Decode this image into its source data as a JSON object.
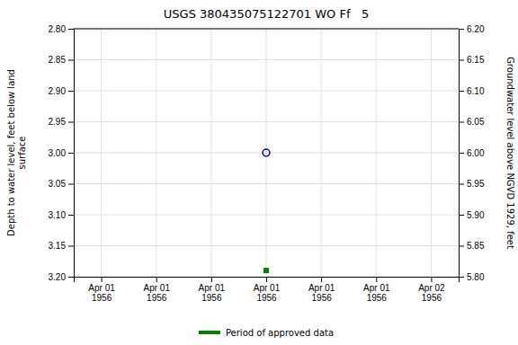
{
  "chart_data": {
    "type": "scatter",
    "title": "USGS 380435075122701 WO Ff   5",
    "y_label": "Depth to water level, feet below land\nsurface",
    "y2_label": "Groundwater level above NGVD 1929, feet",
    "categories": [
      "Apr 01\n1956",
      "Apr 01\n1956",
      "Apr 01\n1956",
      "Apr 01\n1956",
      "Apr 01\n1956",
      "Apr 01\n1956",
      "Apr 02\n1956"
    ],
    "series": [
      {
        "color": "#0000cc",
        "marker": "circle",
        "values": [
          null,
          null,
          null,
          3.0,
          null,
          null,
          null
        ]
      },
      {
        "name": "Period of approved data",
        "color": "#008000",
        "marker": "square",
        "values": [
          null,
          null,
          null,
          3.19,
          null,
          null,
          null
        ]
      }
    ],
    "ylim": [
      3.2,
      2.8
    ],
    "yticks": [
      {
        "value": 2.8,
        "label": "2.80"
      },
      2.85,
      {
        "value": 2.9,
        "label": "2.90"
      },
      2.95,
      {
        "value": 3.0,
        "label": "3.00"
      },
      3.05,
      {
        "value": 3.1,
        "label": "3.10"
      },
      3.15,
      {
        "value": 3.2,
        "label": "3.20"
      }
    ],
    "y2lim": [
      5.8,
      6.2
    ],
    "y2ticks": [
      {
        "value": 5.8,
        "label": "5.80"
      },
      5.85,
      {
        "value": 5.9,
        "label": "5.90"
      },
      5.95,
      {
        "value": 6.0,
        "label": "6.00"
      },
      6.05,
      {
        "value": 6.1,
        "label": "6.10"
      },
      6.15,
      {
        "value": 6.2,
        "label": "6.20"
      }
    ],
    "grid": true,
    "legend": "bottom"
  }
}
